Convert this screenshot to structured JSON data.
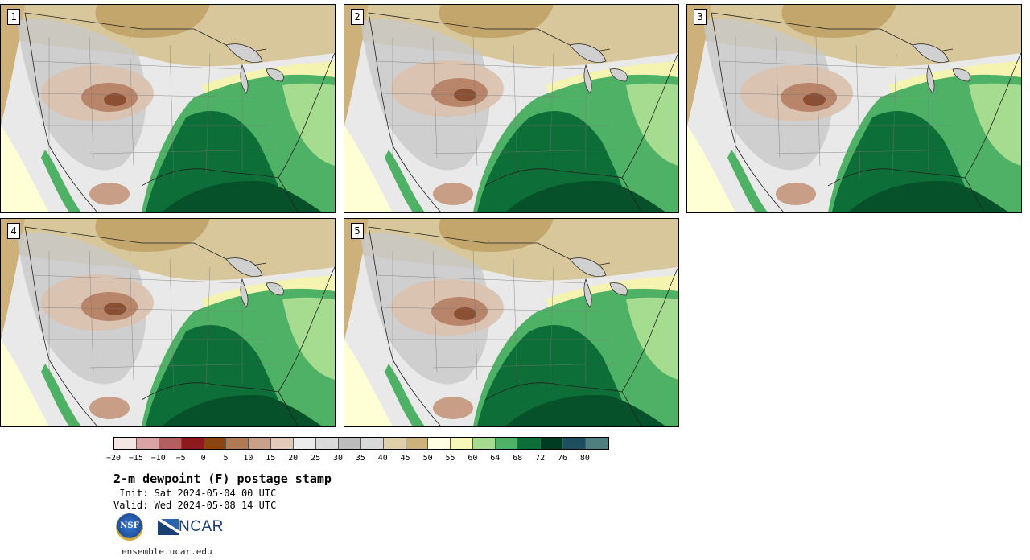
{
  "panels": [
    {
      "label": "1",
      "variant": 0
    },
    {
      "label": "2",
      "variant": 1
    },
    {
      "label": "3",
      "variant": 2
    },
    {
      "label": "4",
      "variant": 3
    },
    {
      "label": "5",
      "variant": 4
    }
  ],
  "colorbar": {
    "colors": [
      "#f5e6e6",
      "#d9a3a5",
      "#b35e60",
      "#8e1a1e",
      "#8b4513",
      "#b07a55",
      "#c9a18a",
      "#e3c9b8",
      "#ececec",
      "#dadada",
      "#bdbdbd",
      "#d9d9d9",
      "#e0cfa8",
      "#cdb07a",
      "#ffffe4",
      "#f7f7b9",
      "#a6dc8f",
      "#4fb165",
      "#0d6e37",
      "#003c22",
      "#1d4e5e",
      "#4f7f7f"
    ],
    "ticks": [
      "−20",
      "−15",
      "−10",
      "−5",
      "0",
      "5",
      "10",
      "15",
      "20",
      "25",
      "30",
      "35",
      "40",
      "45",
      "50",
      "55",
      "60",
      "64",
      "68",
      "72",
      "76",
      "80"
    ]
  },
  "title": "2-m dewpoint (F) postage stamp",
  "init": " Init: Sat 2024-05-04 00 UTC",
  "valid": "Valid: Wed 2024-05-08 14 UTC",
  "logos": {
    "nsf": "NSF",
    "ncar": "NCAR"
  },
  "site": "ensemble.ucar.edu"
}
